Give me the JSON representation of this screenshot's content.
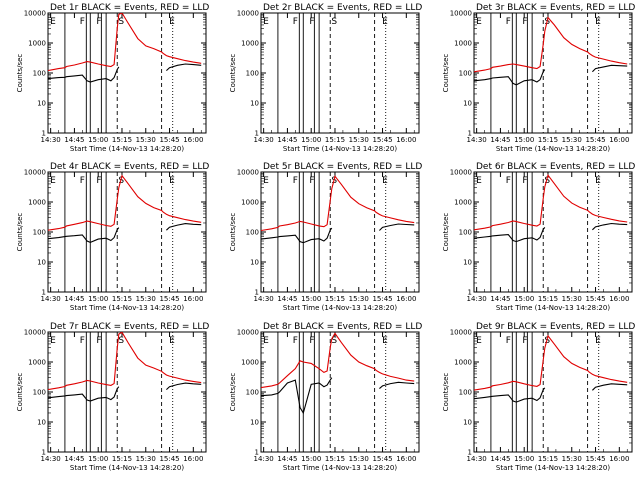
{
  "colors": {
    "events": "#000000",
    "lld": "#e00000",
    "background": "#ffffff"
  },
  "common": {
    "xlabel": "Start Time (14-Nov-13 14:28:20)",
    "ylabel": "Counts/sec",
    "x_ticks": [
      "14:30",
      "14:45",
      "15:00",
      "15:15",
      "15:30",
      "15:45",
      "16:00"
    ],
    "y_ticks": [
      "1",
      "10",
      "100",
      "1000",
      "10000"
    ],
    "xlim": [
      "14:28:20",
      "16:08:00"
    ],
    "ylim": [
      1,
      10000
    ],
    "log_y": true,
    "marker_letters": [
      "E",
      "F",
      "F",
      "S",
      "E"
    ]
  },
  "chart_data": [
    {
      "type": "line",
      "title": "Det 1r BLACK = Events, RED = LLD",
      "xlabel": "Start Time (14-Nov-13 14:28:20)",
      "ylabel": "Counts/sec",
      "ylim": [
        1,
        10000
      ],
      "log_y": true,
      "x": [
        "14:28:20",
        "14:35",
        "14:39",
        "14:40",
        "14:45",
        "14:50",
        "14:53",
        "14:55",
        "15:00",
        "15:05",
        "15:08",
        "15:10",
        "15:12",
        "15:13",
        "15:15",
        "15:19",
        "15:25",
        "15:30",
        "15:35",
        "15:40",
        "15:41",
        "15:43",
        "15:45",
        "15:50",
        "15:55",
        "16:00",
        "16:05"
      ],
      "series": [
        {
          "name": "Events",
          "color": "#000000",
          "values": [
            65,
            70,
            72,
            75,
            80,
            85,
            55,
            50,
            60,
            65,
            55,
            70,
            130,
            160,
            null,
            null,
            null,
            null,
            null,
            null,
            null,
            120,
            150,
            180,
            200,
            190,
            180
          ]
        },
        {
          "name": "LLD",
          "color": "#e00000",
          "values": [
            120,
            140,
            150,
            165,
            185,
            215,
            240,
            230,
            200,
            175,
            165,
            190,
            3000,
            9000,
            10000,
            4500,
            1400,
            800,
            650,
            500,
            450,
            380,
            350,
            300,
            260,
            230,
            210
          ]
        }
      ]
    },
    {
      "type": "line",
      "title": "Det 2r BLACK = Events, RED = LLD",
      "xlabel": "Start Time (14-Nov-13 14:28:20)",
      "ylabel": "Counts/sec",
      "ylim": [
        1,
        10000
      ],
      "log_y": true,
      "series": []
    },
    {
      "type": "line",
      "title": "Det 3r BLACK = Events, RED = LLD",
      "xlabel": "Start Time (14-Nov-13 14:28:20)",
      "ylabel": "Counts/sec",
      "ylim": [
        1,
        10000
      ],
      "log_y": true,
      "x": [
        "14:28:20",
        "14:35",
        "14:39",
        "14:40",
        "14:45",
        "14:50",
        "14:53",
        "14:55",
        "15:00",
        "15:05",
        "15:08",
        "15:10",
        "15:12",
        "15:13",
        "15:15",
        "15:19",
        "15:25",
        "15:30",
        "15:35",
        "15:40",
        "15:41",
        "15:43",
        "15:45",
        "15:50",
        "15:55",
        "16:00",
        "16:05"
      ],
      "series": [
        {
          "name": "Events",
          "color": "#000000",
          "values": [
            55,
            60,
            65,
            68,
            72,
            75,
            45,
            40,
            55,
            60,
            50,
            60,
            110,
            130,
            null,
            null,
            null,
            null,
            null,
            null,
            null,
            110,
            140,
            160,
            180,
            175,
            170
          ]
        },
        {
          "name": "LLD",
          "color": "#e00000",
          "values": [
            110,
            125,
            140,
            155,
            170,
            190,
            200,
            190,
            170,
            150,
            140,
            165,
            900,
            2500,
            7000,
            4000,
            1500,
            900,
            650,
            500,
            450,
            380,
            340,
            290,
            250,
            220,
            200
          ]
        }
      ]
    },
    {
      "type": "line",
      "title": "Det 4r BLACK = Events, RED = LLD",
      "xlabel": "Start Time (14-Nov-13 14:28:20)",
      "ylabel": "Counts/sec",
      "ylim": [
        1,
        10000
      ],
      "log_y": true,
      "x": [
        "14:28:20",
        "14:35",
        "14:39",
        "14:40",
        "14:45",
        "14:50",
        "14:53",
        "14:55",
        "15:00",
        "15:05",
        "15:08",
        "15:10",
        "15:12",
        "15:13",
        "15:15",
        "15:19",
        "15:25",
        "15:30",
        "15:35",
        "15:40",
        "15:41",
        "15:43",
        "15:45",
        "15:50",
        "15:55",
        "16:00",
        "16:05"
      ],
      "series": [
        {
          "name": "Events",
          "color": "#000000",
          "values": [
            60,
            65,
            70,
            72,
            75,
            80,
            50,
            45,
            58,
            62,
            52,
            65,
            120,
            140,
            null,
            null,
            null,
            null,
            null,
            null,
            null,
            115,
            145,
            170,
            190,
            180,
            175
          ]
        },
        {
          "name": "LLD",
          "color": "#e00000",
          "values": [
            115,
            130,
            145,
            160,
            180,
            205,
            230,
            220,
            190,
            165,
            155,
            180,
            1200,
            3000,
            7500,
            4000,
            1500,
            900,
            650,
            520,
            460,
            390,
            350,
            300,
            260,
            230,
            210
          ]
        }
      ]
    },
    {
      "type": "line",
      "title": "Det 5r BLACK = Events, RED = LLD",
      "xlabel": "Start Time (14-Nov-13 14:28:20)",
      "ylabel": "Counts/sec",
      "ylim": [
        1,
        10000
      ],
      "log_y": true,
      "x": [
        "14:28:20",
        "14:35",
        "14:39",
        "14:40",
        "14:45",
        "14:50",
        "14:53",
        "14:55",
        "15:00",
        "15:05",
        "15:08",
        "15:10",
        "15:12",
        "15:13",
        "15:15",
        "15:19",
        "15:25",
        "15:30",
        "15:35",
        "15:40",
        "15:41",
        "15:43",
        "15:45",
        "15:50",
        "15:55",
        "16:00",
        "16:05"
      ],
      "series": [
        {
          "name": "Events",
          "color": "#000000",
          "values": [
            58,
            64,
            68,
            70,
            74,
            78,
            48,
            44,
            56,
            60,
            50,
            62,
            115,
            135,
            null,
            null,
            null,
            null,
            null,
            null,
            null,
            112,
            142,
            165,
            185,
            178,
            172
          ]
        },
        {
          "name": "LLD",
          "color": "#e00000",
          "values": [
            112,
            128,
            142,
            158,
            175,
            200,
            225,
            215,
            185,
            160,
            150,
            175,
            1100,
            2800,
            7200,
            3900,
            1450,
            880,
            640,
            510,
            450,
            385,
            345,
            295,
            255,
            225,
            205
          ]
        }
      ]
    },
    {
      "type": "line",
      "title": "Det 6r BLACK = Events, RED = LLD",
      "xlabel": "Start Time (14-Nov-13 14:28:20)",
      "ylabel": "Counts/sec",
      "ylim": [
        1,
        10000
      ],
      "log_y": true,
      "x": [
        "14:28:20",
        "14:35",
        "14:39",
        "14:40",
        "14:45",
        "14:50",
        "14:53",
        "14:55",
        "15:00",
        "15:05",
        "15:08",
        "15:10",
        "15:12",
        "15:13",
        "15:15",
        "15:19",
        "15:25",
        "15:30",
        "15:35",
        "15:40",
        "15:41",
        "15:43",
        "15:45",
        "15:50",
        "15:55",
        "16:00",
        "16:05"
      ],
      "series": [
        {
          "name": "Events",
          "color": "#000000",
          "values": [
            62,
            68,
            72,
            74,
            78,
            82,
            52,
            48,
            60,
            64,
            54,
            66,
            122,
            142,
            null,
            null,
            null,
            null,
            null,
            null,
            null,
            118,
            148,
            172,
            192,
            182,
            176
          ]
        },
        {
          "name": "LLD",
          "color": "#e00000",
          "values": [
            118,
            134,
            148,
            163,
            182,
            208,
            232,
            222,
            192,
            168,
            158,
            182,
            1300,
            3200,
            7800,
            4100,
            1550,
            920,
            670,
            530,
            470,
            395,
            355,
            305,
            265,
            235,
            215
          ]
        }
      ]
    },
    {
      "type": "line",
      "title": "Det 7r BLACK = Events, RED = LLD",
      "xlabel": "Start Time (14-Nov-13 14:28:20)",
      "ylabel": "Counts/sec",
      "ylim": [
        1,
        10000
      ],
      "log_y": true,
      "x": [
        "14:28:20",
        "14:35",
        "14:39",
        "14:40",
        "14:45",
        "14:50",
        "14:53",
        "14:55",
        "15:00",
        "15:05",
        "15:08",
        "15:10",
        "15:12",
        "15:13",
        "15:15",
        "15:19",
        "15:25",
        "15:30",
        "15:35",
        "15:40",
        "15:41",
        "15:43",
        "15:45",
        "15:50",
        "15:55",
        "16:00",
        "16:05"
      ],
      "series": [
        {
          "name": "Events",
          "color": "#000000",
          "values": [
            64,
            70,
            74,
            76,
            80,
            85,
            54,
            50,
            62,
            66,
            56,
            68,
            128,
            150,
            null,
            null,
            null,
            null,
            null,
            null,
            null,
            120,
            150,
            178,
            198,
            188,
            180
          ]
        },
        {
          "name": "LLD",
          "color": "#e00000",
          "values": [
            120,
            138,
            152,
            167,
            188,
            215,
            242,
            232,
            200,
            176,
            166,
            190,
            2800,
            8500,
            9800,
            4300,
            1350,
            780,
            630,
            490,
            440,
            370,
            340,
            290,
            250,
            225,
            205
          ]
        }
      ]
    },
    {
      "type": "line",
      "title": "Det 8r BLACK = Events, RED = LLD",
      "xlabel": "Start Time (14-Nov-13 14:28:20)",
      "ylabel": "Counts/sec",
      "ylim": [
        1,
        10000
      ],
      "log_y": true,
      "x": [
        "14:28:20",
        "14:35",
        "14:39",
        "14:40",
        "14:45",
        "14:50",
        "14:53",
        "14:55",
        "15:00",
        "15:05",
        "15:08",
        "15:10",
        "15:12",
        "15:13",
        "15:15",
        "15:19",
        "15:25",
        "15:30",
        "15:35",
        "15:40",
        "15:41",
        "15:43",
        "15:45",
        "15:50",
        "15:55",
        "16:00",
        "16:05"
      ],
      "series": [
        {
          "name": "Events",
          "color": "#000000",
          "values": [
            75,
            80,
            90,
            100,
            200,
            250,
            30,
            20,
            180,
            200,
            150,
            170,
            250,
            300,
            null,
            null,
            null,
            null,
            null,
            null,
            null,
            130,
            160,
            190,
            210,
            200,
            190
          ]
        },
        {
          "name": "LLD",
          "color": "#e00000",
          "values": [
            140,
            160,
            180,
            200,
            350,
            600,
            1100,
            1000,
            900,
            600,
            450,
            500,
            3000,
            6000,
            9000,
            4500,
            1700,
            1000,
            750,
            600,
            520,
            450,
            400,
            330,
            290,
            250,
            230
          ]
        }
      ]
    },
    {
      "type": "line",
      "title": "Det 9r BLACK = Events, RED = LLD",
      "xlabel": "Start Time (14-Nov-13 14:28:20)",
      "ylabel": "Counts/sec",
      "ylim": [
        1,
        10000
      ],
      "log_y": true,
      "x": [
        "14:28:20",
        "14:35",
        "14:39",
        "14:40",
        "14:45",
        "14:50",
        "14:53",
        "14:55",
        "15:00",
        "15:05",
        "15:08",
        "15:10",
        "15:12",
        "15:13",
        "15:15",
        "15:19",
        "15:25",
        "15:30",
        "15:35",
        "15:40",
        "15:41",
        "15:43",
        "15:45",
        "15:50",
        "15:55",
        "16:00",
        "16:05"
      ],
      "series": [
        {
          "name": "Events",
          "color": "#000000",
          "values": [
            60,
            66,
            70,
            72,
            76,
            80,
            50,
            46,
            58,
            62,
            52,
            64,
            118,
            138,
            null,
            null,
            null,
            null,
            null,
            null,
            null,
            114,
            144,
            168,
            188,
            180,
            174
          ]
        },
        {
          "name": "LLD",
          "color": "#e00000",
          "values": [
            116,
            132,
            146,
            161,
            178,
            202,
            228,
            218,
            188,
            164,
            154,
            178,
            1150,
            2900,
            7400,
            3950,
            1500,
            900,
            660,
            520,
            460,
            390,
            350,
            300,
            260,
            230,
            210
          ]
        }
      ]
    }
  ]
}
